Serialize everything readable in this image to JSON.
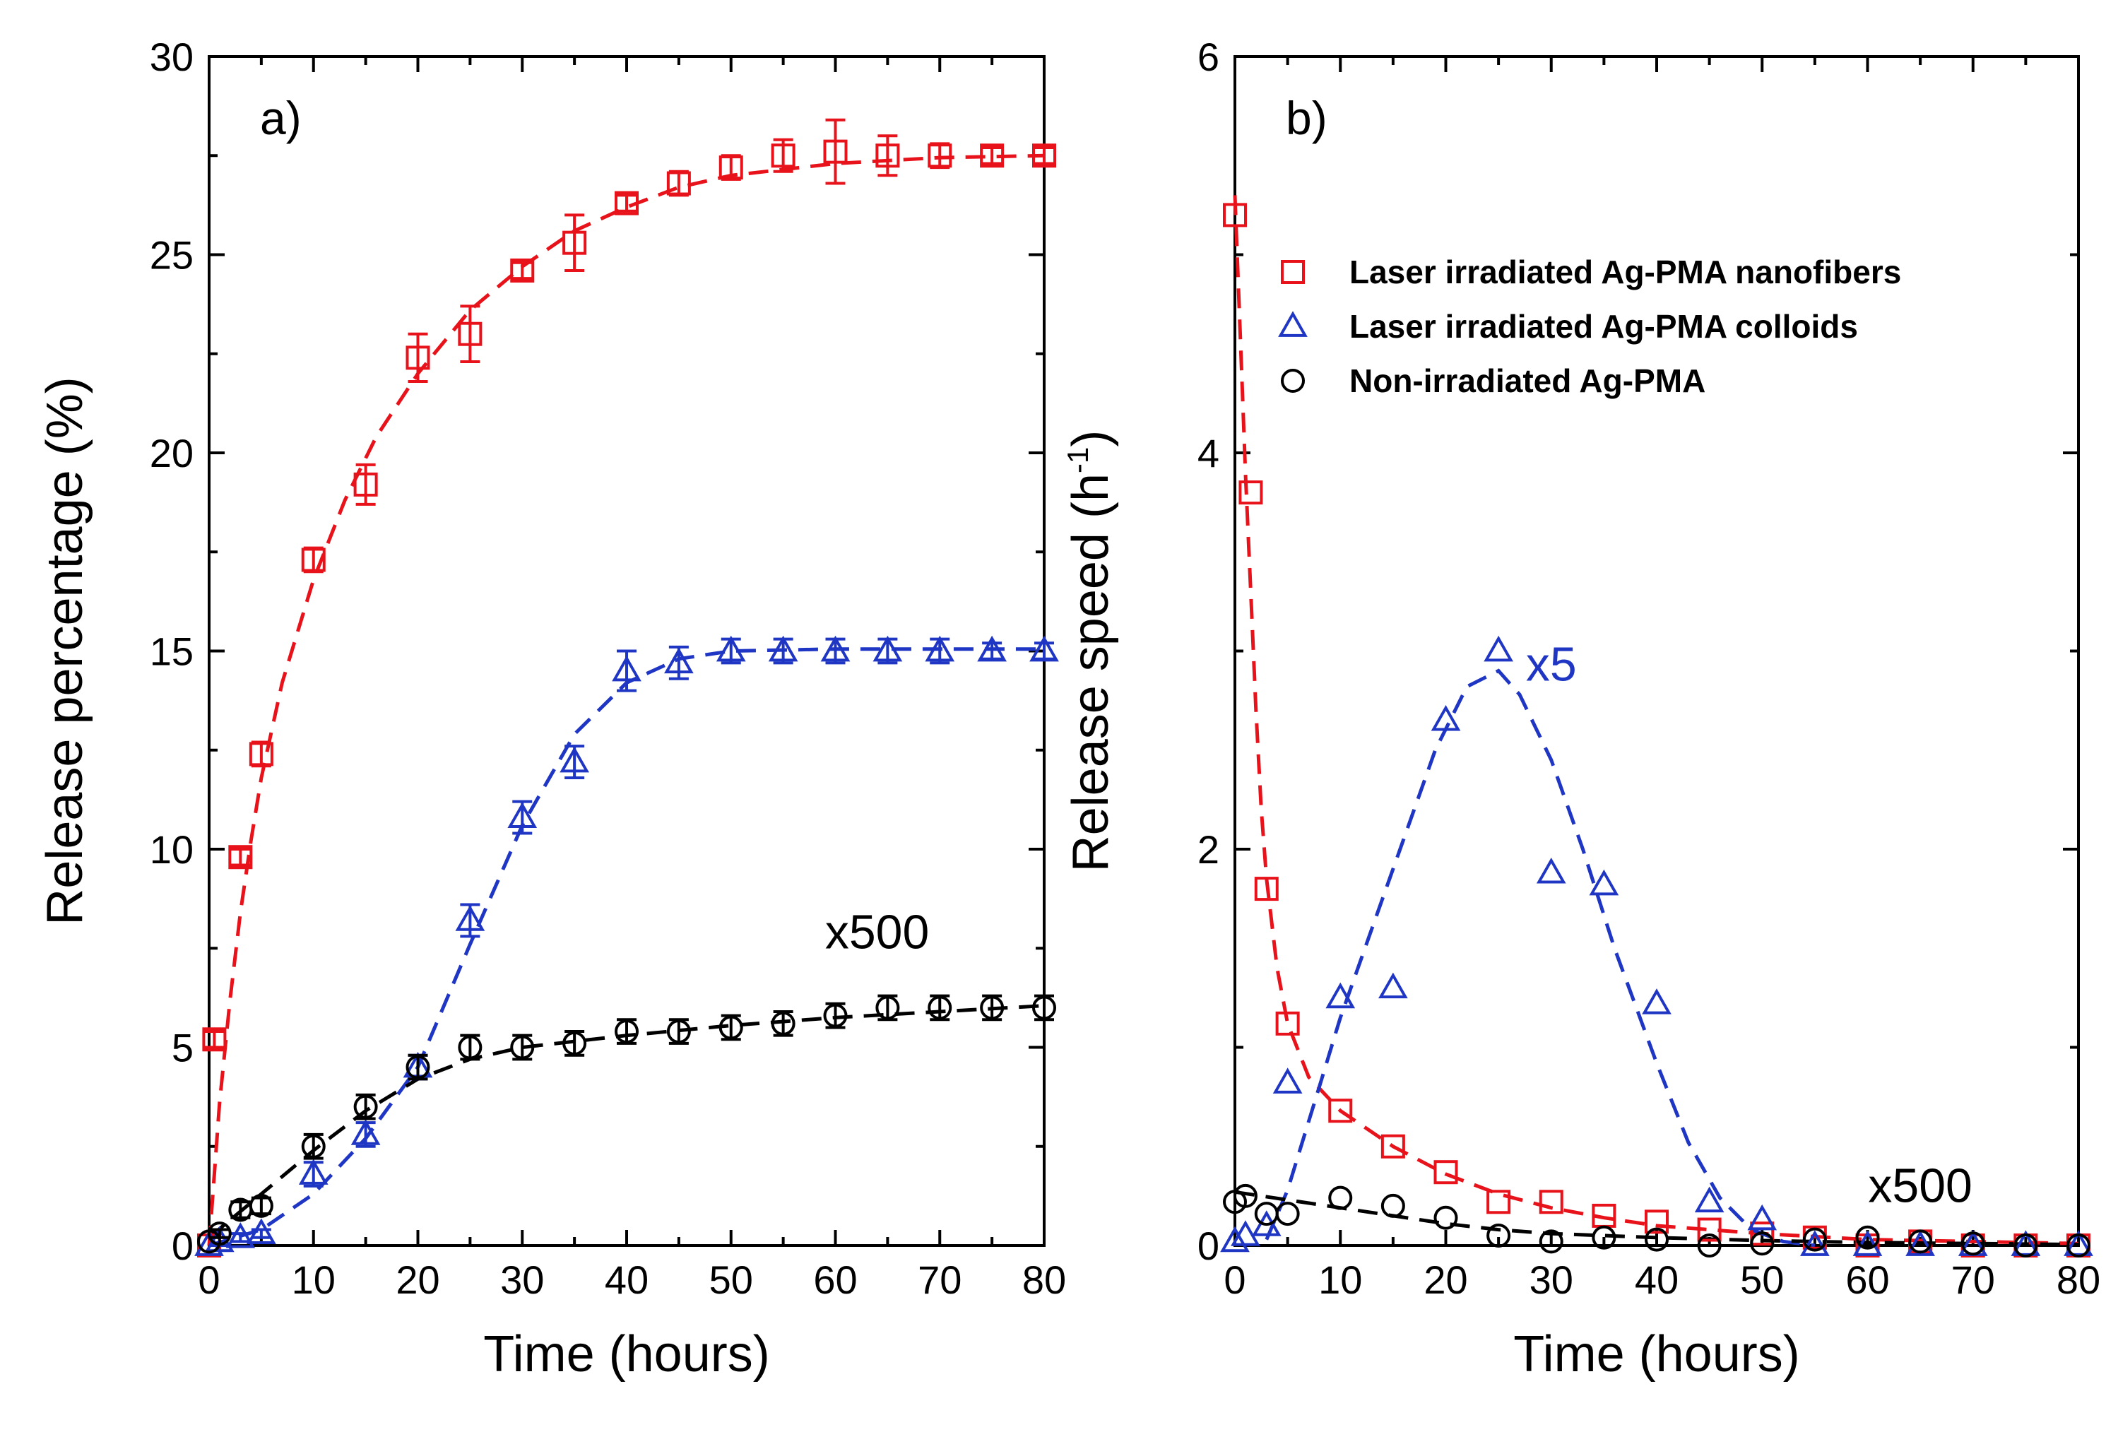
{
  "chart_data": [
    {
      "type": "scatter",
      "panel_label": "a)",
      "xlabel": "Time (hours)",
      "ylabel": "Release percentage (%)",
      "xlim": [
        0,
        80
      ],
      "ylim": [
        0,
        30
      ],
      "xticks": [
        0,
        10,
        20,
        30,
        40,
        50,
        60,
        70,
        80
      ],
      "yticks": [
        0,
        5,
        10,
        15,
        20,
        25,
        30
      ],
      "annotations": [
        {
          "text": "x500",
          "x": 64,
          "y": 7.5,
          "color": "#000000"
        }
      ],
      "series": [
        {
          "name": "Laser irradiated Ag-PMA nanofibers",
          "marker": "square",
          "color": "#e8121b",
          "points": [
            [
              0,
              0
            ],
            [
              0.5,
              5.2
            ],
            [
              3,
              9.8
            ],
            [
              5,
              12.4
            ],
            [
              10,
              17.3
            ],
            [
              15,
              19.2
            ],
            [
              20,
              22.4
            ],
            [
              25,
              23.0
            ],
            [
              30,
              24.6
            ],
            [
              35,
              25.3
            ],
            [
              40,
              26.3
            ],
            [
              45,
              26.8
            ],
            [
              50,
              27.2
            ],
            [
              55,
              27.5
            ],
            [
              60,
              27.6
            ],
            [
              65,
              27.5
            ],
            [
              70,
              27.5
            ],
            [
              75,
              27.5
            ],
            [
              80,
              27.5
            ]
          ],
          "errors": [
            0,
            0.2,
            0.2,
            0.3,
            0.3,
            0.5,
            0.6,
            0.7,
            0.2,
            0.7,
            0.2,
            0.3,
            0.3,
            0.4,
            0.8,
            0.5,
            0.3,
            0.2,
            0.2
          ],
          "fit": [
            [
              0,
              0
            ],
            [
              1,
              3.6
            ],
            [
              2,
              6.2
            ],
            [
              3,
              8.4
            ],
            [
              4,
              10.2
            ],
            [
              5,
              11.8
            ],
            [
              7,
              14.2
            ],
            [
              10,
              16.8
            ],
            [
              13,
              18.8
            ],
            [
              16,
              20.4
            ],
            [
              20,
              22.0
            ],
            [
              25,
              23.6
            ],
            [
              30,
              24.7
            ],
            [
              35,
              25.6
            ],
            [
              40,
              26.2
            ],
            [
              45,
              26.7
            ],
            [
              50,
              27.0
            ],
            [
              60,
              27.3
            ],
            [
              70,
              27.45
            ],
            [
              80,
              27.5
            ]
          ]
        },
        {
          "name": "Laser irradiated Ag-PMA colloids",
          "marker": "triangle",
          "color": "#1f36c4",
          "points": [
            [
              0,
              0
            ],
            [
              1,
              0.1
            ],
            [
              3,
              0.2
            ],
            [
              5,
              0.3
            ],
            [
              10,
              1.8
            ],
            [
              15,
              2.8
            ],
            [
              20,
              4.5
            ],
            [
              25,
              8.2
            ],
            [
              30,
              10.8
            ],
            [
              35,
              12.2
            ],
            [
              40,
              14.5
            ],
            [
              45,
              14.7
            ],
            [
              50,
              15.0
            ],
            [
              55,
              15.0
            ],
            [
              60,
              15.0
            ],
            [
              65,
              15.0
            ],
            [
              70,
              15.0
            ],
            [
              75,
              15.0
            ],
            [
              80,
              15.0
            ]
          ],
          "errors": [
            0,
            0.1,
            0.1,
            0.1,
            0.3,
            0.3,
            0.3,
            0.4,
            0.4,
            0.4,
            0.5,
            0.4,
            0.3,
            0.3,
            0.3,
            0.3,
            0.3,
            0.2,
            0.2
          ],
          "fit": [
            [
              0,
              0
            ],
            [
              5,
              0.4
            ],
            [
              10,
              1.3
            ],
            [
              15,
              2.7
            ],
            [
              20,
              4.5
            ],
            [
              25,
              7.6
            ],
            [
              30,
              10.6
            ],
            [
              35,
              12.9
            ],
            [
              40,
              14.2
            ],
            [
              45,
              14.8
            ],
            [
              50,
              15.0
            ],
            [
              60,
              15.05
            ],
            [
              70,
              15.05
            ],
            [
              80,
              15.05
            ]
          ]
        },
        {
          "name": "Non-irradiated Ag-PMA",
          "marker": "circle",
          "color": "#000000",
          "points": [
            [
              0,
              0.1
            ],
            [
              1,
              0.3
            ],
            [
              3,
              0.9
            ],
            [
              5,
              1.0
            ],
            [
              10,
              2.5
            ],
            [
              15,
              3.5
            ],
            [
              20,
              4.5
            ],
            [
              25,
              5.0
            ],
            [
              30,
              5.0
            ],
            [
              35,
              5.1
            ],
            [
              40,
              5.4
            ],
            [
              45,
              5.4
            ],
            [
              50,
              5.5
            ],
            [
              55,
              5.6
            ],
            [
              60,
              5.8
            ],
            [
              65,
              6.0
            ],
            [
              70,
              6.0
            ],
            [
              75,
              6.0
            ],
            [
              80,
              6.0
            ]
          ],
          "errors": [
            0,
            0.1,
            0.2,
            0.2,
            0.3,
            0.3,
            0.3,
            0.3,
            0.3,
            0.3,
            0.3,
            0.3,
            0.3,
            0.3,
            0.3,
            0.3,
            0.3,
            0.3,
            0.3
          ],
          "fit": [
            [
              0,
              0.2
            ],
            [
              5,
              1.3
            ],
            [
              10,
              2.4
            ],
            [
              15,
              3.4
            ],
            [
              20,
              4.2
            ],
            [
              25,
              4.7
            ],
            [
              30,
              5.0
            ],
            [
              40,
              5.3
            ],
            [
              50,
              5.55
            ],
            [
              60,
              5.75
            ],
            [
              70,
              5.9
            ],
            [
              80,
              6.05
            ]
          ]
        }
      ]
    },
    {
      "type": "scatter",
      "panel_label": "b)",
      "xlabel": "Time (hours)",
      "ylabel": "Release speed (h",
      "ylabel_sup": "-1",
      "ylabel_end": ")",
      "xlim": [
        0,
        80
      ],
      "ylim": [
        0,
        6
      ],
      "xticks": [
        0,
        10,
        20,
        30,
        40,
        50,
        60,
        70,
        80
      ],
      "yticks": [
        0,
        2,
        4,
        6
      ],
      "annotations": [
        {
          "text": "x5",
          "x": 30,
          "y": 2.85,
          "color": "#1f36c4"
        },
        {
          "text": "x500",
          "x": 65,
          "y": 0.22,
          "color": "#000000"
        }
      ],
      "legend": {
        "position": "top-right",
        "entries": [
          {
            "label": "Laser irradiated Ag-PMA nanofibers",
            "marker": "square",
            "color": "#e8121b"
          },
          {
            "label": "Laser irradiated Ag-PMA colloids",
            "marker": "triangle",
            "color": "#1f36c4"
          },
          {
            "label": "Non-irradiated Ag-PMA",
            "marker": "circle",
            "color": "#000000"
          }
        ]
      },
      "series": [
        {
          "name": "Laser irradiated Ag-PMA nanofibers",
          "marker": "square",
          "color": "#e8121b",
          "points": [
            [
              0,
              5.2
            ],
            [
              1.5,
              3.8
            ],
            [
              3,
              1.8
            ],
            [
              5,
              1.12
            ],
            [
              10,
              0.68
            ],
            [
              15,
              0.5
            ],
            [
              20,
              0.37
            ],
            [
              25,
              0.22
            ],
            [
              30,
              0.22
            ],
            [
              35,
              0.15
            ],
            [
              40,
              0.12
            ],
            [
              45,
              0.08
            ],
            [
              50,
              0.06
            ],
            [
              55,
              0.04
            ],
            [
              60,
              0.0
            ],
            [
              65,
              0.02
            ],
            [
              70,
              0.0
            ],
            [
              75,
              0.0
            ],
            [
              80,
              0.0
            ]
          ],
          "fit": [
            [
              0,
              5.3
            ],
            [
              0.5,
              4.6
            ],
            [
              1,
              3.9
            ],
            [
              1.5,
              3.3
            ],
            [
              2,
              2.7
            ],
            [
              2.5,
              2.2
            ],
            [
              3,
              1.85
            ],
            [
              4,
              1.4
            ],
            [
              5,
              1.12
            ],
            [
              7,
              0.85
            ],
            [
              10,
              0.68
            ],
            [
              15,
              0.5
            ],
            [
              20,
              0.36
            ],
            [
              25,
              0.26
            ],
            [
              30,
              0.19
            ],
            [
              35,
              0.14
            ],
            [
              40,
              0.1
            ],
            [
              50,
              0.06
            ],
            [
              60,
              0.03
            ],
            [
              70,
              0.02
            ],
            [
              80,
              0.01
            ]
          ]
        },
        {
          "name": "Laser irradiated Ag-PMA colloids",
          "marker": "triangle",
          "color": "#1f36c4",
          "points": [
            [
              0,
              0.02
            ],
            [
              1,
              0.05
            ],
            [
              3,
              0.1
            ],
            [
              5,
              0.82
            ],
            [
              10,
              1.25
            ],
            [
              15,
              1.3
            ],
            [
              20,
              2.65
            ],
            [
              25,
              3.0
            ],
            [
              30,
              1.88
            ],
            [
              35,
              1.82
            ],
            [
              40,
              1.22
            ],
            [
              45,
              0.22
            ],
            [
              50,
              0.13
            ],
            [
              55,
              0.0
            ],
            [
              60,
              0.0
            ],
            [
              65,
              0.0
            ],
            [
              70,
              0.0
            ],
            [
              75,
              0.0
            ],
            [
              80,
              0.0
            ]
          ],
          "fit": [
            [
              3,
              0.03
            ],
            [
              5,
              0.28
            ],
            [
              8,
              0.8
            ],
            [
              10,
              1.15
            ],
            [
              13,
              1.6
            ],
            [
              16,
              2.05
            ],
            [
              19,
              2.5
            ],
            [
              22,
              2.82
            ],
            [
              25,
              2.9
            ],
            [
              27,
              2.78
            ],
            [
              30,
              2.45
            ],
            [
              33,
              2.0
            ],
            [
              36,
              1.5
            ],
            [
              40,
              0.92
            ],
            [
              43,
              0.52
            ],
            [
              46,
              0.24
            ],
            [
              49,
              0.08
            ],
            [
              52,
              0.02
            ],
            [
              55,
              0.0
            ]
          ]
        },
        {
          "name": "Non-irradiated Ag-PMA",
          "marker": "circle",
          "color": "#000000",
          "points": [
            [
              0,
              0.22
            ],
            [
              1,
              0.25
            ],
            [
              3,
              0.16
            ],
            [
              5,
              0.16
            ],
            [
              10,
              0.24
            ],
            [
              15,
              0.2
            ],
            [
              20,
              0.14
            ],
            [
              25,
              0.05
            ],
            [
              30,
              0.02
            ],
            [
              35,
              0.04
            ],
            [
              40,
              0.03
            ],
            [
              45,
              0.0
            ],
            [
              50,
              0.01
            ],
            [
              55,
              0.03
            ],
            [
              60,
              0.04
            ],
            [
              65,
              0.02
            ],
            [
              70,
              0.01
            ],
            [
              75,
              0.0
            ],
            [
              80,
              0.0
            ]
          ],
          "fit": [
            [
              0,
              0.27
            ],
            [
              5,
              0.23
            ],
            [
              10,
              0.19
            ],
            [
              15,
              0.15
            ],
            [
              20,
              0.11
            ],
            [
              25,
              0.08
            ],
            [
              30,
              0.06
            ],
            [
              40,
              0.04
            ],
            [
              50,
              0.025
            ],
            [
              60,
              0.015
            ],
            [
              70,
              0.01
            ],
            [
              80,
              0.005
            ]
          ]
        }
      ]
    }
  ]
}
